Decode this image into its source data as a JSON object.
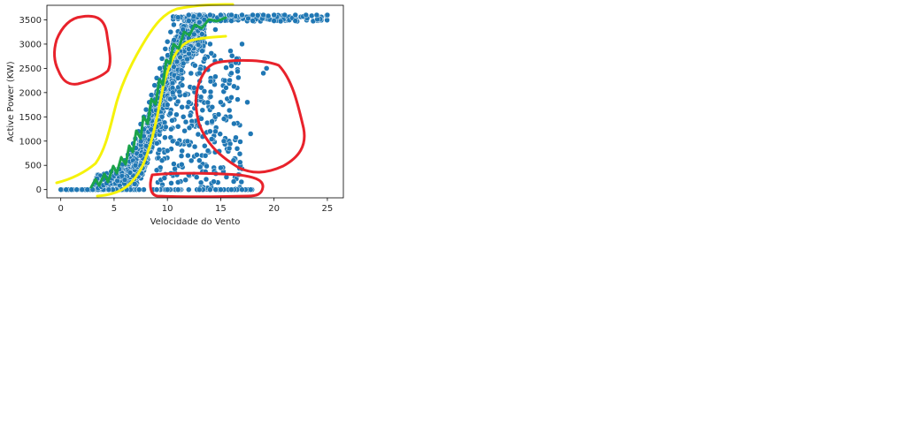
{
  "chart_data": {
    "type": "scatter",
    "title": "",
    "xlabel": "Velocidade do Vento",
    "ylabel": "Active Power (KW)",
    "xlim": [
      -1.3,
      26.5
    ],
    "ylim": [
      -170,
      3800
    ],
    "xticks": [
      0,
      5,
      10,
      15,
      20,
      25
    ],
    "yticks": [
      0,
      500,
      1000,
      1500,
      2000,
      2500,
      3000,
      3500
    ],
    "grid": false,
    "legend": "none",
    "colors": {
      "points": "#1f77b4",
      "point_edge": "#ffffff",
      "annotation_red": "#e8222b",
      "annotation_yellow": "#f5f20a",
      "annotation_green": "#1aa34a"
    },
    "series": [
      {
        "points": [
          [
            0.0,
            0
          ],
          [
            0.5,
            0
          ],
          [
            1.0,
            0
          ],
          [
            1.5,
            0
          ],
          [
            2.0,
            0
          ],
          [
            2.5,
            0
          ],
          [
            3.0,
            0
          ],
          [
            3.5,
            0
          ],
          [
            4.0,
            0
          ],
          [
            4.5,
            0
          ],
          [
            3.5,
            30
          ],
          [
            3.8,
            60
          ],
          [
            4.0,
            90
          ],
          [
            4.3,
            130
          ],
          [
            4.6,
            180
          ],
          [
            4.8,
            230
          ],
          [
            5.0,
            280
          ],
          [
            5.2,
            330
          ],
          [
            5.5,
            420
          ],
          [
            5.8,
            520
          ],
          [
            6.0,
            600
          ],
          [
            6.3,
            720
          ],
          [
            6.5,
            820
          ],
          [
            6.8,
            950
          ],
          [
            7.0,
            1050
          ],
          [
            7.3,
            1200
          ],
          [
            7.5,
            1350
          ],
          [
            7.8,
            1500
          ],
          [
            8.0,
            1650
          ],
          [
            8.3,
            1800
          ],
          [
            8.5,
            1950
          ],
          [
            8.8,
            2150
          ],
          [
            9.0,
            2300
          ],
          [
            9.3,
            2500
          ],
          [
            9.5,
            2700
          ],
          [
            9.8,
            2900
          ],
          [
            10.0,
            3050
          ],
          [
            10.3,
            3250
          ],
          [
            10.6,
            3400
          ],
          [
            11.0,
            3550
          ],
          [
            6.0,
            200
          ],
          [
            6.5,
            350
          ],
          [
            7.0,
            500
          ],
          [
            7.5,
            700
          ],
          [
            8.0,
            900
          ],
          [
            8.5,
            1100
          ],
          [
            9.0,
            1300
          ],
          [
            9.5,
            1500
          ],
          [
            10.0,
            1750
          ],
          [
            10.5,
            2000
          ],
          [
            11.0,
            2300
          ],
          [
            11.5,
            2600
          ],
          [
            12.0,
            2900
          ],
          [
            12.5,
            3200
          ],
          [
            13.0,
            3450
          ],
          [
            9.0,
            400
          ],
          [
            9.5,
            600
          ],
          [
            10.0,
            800
          ],
          [
            10.5,
            1000
          ],
          [
            11.0,
            1300
          ],
          [
            11.5,
            1500
          ],
          [
            12.0,
            1800
          ],
          [
            12.5,
            2100
          ],
          [
            13.0,
            2400
          ],
          [
            13.5,
            2700
          ],
          [
            14.0,
            3000
          ],
          [
            14.5,
            3300
          ],
          [
            15.0,
            3480
          ],
          [
            11.0,
            150
          ],
          [
            12.0,
            300
          ],
          [
            13.0,
            600
          ],
          [
            13.5,
            900
          ],
          [
            14.0,
            1200
          ],
          [
            14.5,
            1500
          ],
          [
            15.0,
            1800
          ],
          [
            15.5,
            2100
          ],
          [
            16.0,
            2400
          ],
          [
            16.5,
            2700
          ],
          [
            17.0,
            3000
          ],
          [
            12.0,
            3600
          ],
          [
            13.0,
            3600
          ],
          [
            14.0,
            3600
          ],
          [
            15.0,
            3600
          ],
          [
            16.0,
            3600
          ],
          [
            17.0,
            3600
          ],
          [
            18.0,
            3600
          ],
          [
            19.0,
            3600
          ],
          [
            20.0,
            3600
          ],
          [
            21.0,
            3600
          ],
          [
            22.0,
            3600
          ],
          [
            23.0,
            3600
          ],
          [
            24.0,
            3600
          ],
          [
            25.0,
            3600
          ],
          [
            12.0,
            3480
          ],
          [
            14.0,
            3480
          ],
          [
            16.0,
            3480
          ],
          [
            18.0,
            3480
          ],
          [
            20.0,
            3480
          ],
          [
            22.0,
            3480
          ],
          [
            9.0,
            0
          ],
          [
            10.0,
            0
          ],
          [
            11.0,
            0
          ],
          [
            12.0,
            0
          ],
          [
            13.0,
            0
          ],
          [
            14.0,
            0
          ],
          [
            15.0,
            0
          ],
          [
            16.0,
            0
          ],
          [
            17.0,
            0
          ],
          [
            17.8,
            0
          ],
          [
            14.2,
            1700
          ],
          [
            14.8,
            1550
          ],
          [
            15.3,
            1000
          ],
          [
            15.8,
            850
          ],
          [
            16.2,
            600
          ],
          [
            16.0,
            1900
          ],
          [
            17.5,
            1800
          ],
          [
            17.8,
            1150
          ],
          [
            19.0,
            2400
          ],
          [
            19.3,
            2500
          ],
          [
            16.0,
            2550
          ],
          [
            14.5,
            1200
          ],
          [
            13.8,
            800
          ],
          [
            15.0,
            450
          ]
        ]
      }
    ]
  }
}
